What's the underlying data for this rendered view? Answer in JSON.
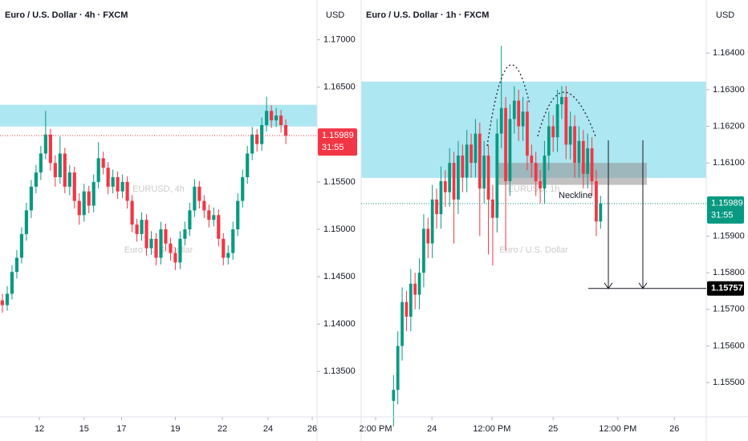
{
  "chart_data": [
    {
      "type": "candlestick",
      "title": "Euro / U.S. Dollar · 4h · FXCM",
      "currency": "USD",
      "watermark": "EURUSD, 4h",
      "watermark_subtitle": "Euro / U.S. Dollar",
      "up_color": "#089981",
      "down_color": "#f23645",
      "xlim": [
        0,
        66
      ],
      "xticks": [
        {
          "value": 8.2,
          "label": "12"
        },
        {
          "value": 17.5,
          "label": "15"
        },
        {
          "value": 25.3,
          "label": "17"
        },
        {
          "value": 36.5,
          "label": "19"
        },
        {
          "value": 46.3,
          "label": "22"
        },
        {
          "value": 55.8,
          "label": "24"
        },
        {
          "value": 65,
          "label": "26"
        }
      ],
      "ylim": [
        1.1302,
        1.1742
      ],
      "yticks": [
        {
          "value": 1.17,
          "label": "1.17000"
        },
        {
          "value": 1.165,
          "label": "1.16500"
        },
        {
          "value": 1.155,
          "label": "1.15500"
        },
        {
          "value": 1.15,
          "label": "1.15000"
        },
        {
          "value": 1.145,
          "label": "1.14500"
        },
        {
          "value": 1.14,
          "label": "1.14000"
        },
        {
          "value": 1.135,
          "label": "1.13500"
        }
      ],
      "last_price": 1.15989,
      "countdown": "31:55",
      "zones": [
        {
          "from": 1.16314,
          "to": 1.16085,
          "color": "#a9e6f0"
        }
      ],
      "candles": [
        [
          1.1425,
          1.1432,
          1.1412,
          1.142
        ],
        [
          1.142,
          1.144,
          1.1414,
          1.1432
        ],
        [
          1.1432,
          1.1462,
          1.1426,
          1.1455
        ],
        [
          1.1455,
          1.1478,
          1.1448,
          1.147
        ],
        [
          1.147,
          1.1502,
          1.1464,
          1.1495
        ],
        [
          1.1495,
          1.1528,
          1.1488,
          1.152
        ],
        [
          1.152,
          1.1552,
          1.1512,
          1.1545
        ],
        [
          1.1545,
          1.1568,
          1.1538,
          1.156
        ],
        [
          1.156,
          1.1588,
          1.1552,
          1.158
        ],
        [
          1.158,
          1.1625,
          1.1574,
          1.16
        ],
        [
          1.16,
          1.1606,
          1.1562,
          1.157
        ],
        [
          1.157,
          1.1578,
          1.1545,
          1.1555
        ],
        [
          1.1555,
          1.1598,
          1.1548,
          1.158
        ],
        [
          1.158,
          1.1586,
          1.1538,
          1.1545
        ],
        [
          1.1545,
          1.1568,
          1.1536,
          1.156
        ],
        [
          1.156,
          1.1566,
          1.1522,
          1.153
        ],
        [
          1.153,
          1.1538,
          1.1505,
          1.1515
        ],
        [
          1.1515,
          1.1548,
          1.1508,
          1.154
        ],
        [
          1.154,
          1.1546,
          1.1517,
          1.1525
        ],
        [
          1.1525,
          1.1558,
          1.1518,
          1.155
        ],
        [
          1.155,
          1.1592,
          1.1543,
          1.1575
        ],
        [
          1.1575,
          1.1582,
          1.1558,
          1.1565
        ],
        [
          1.1565,
          1.1571,
          1.1537,
          1.1545
        ],
        [
          1.1545,
          1.1563,
          1.1538,
          1.1555
        ],
        [
          1.1555,
          1.1561,
          1.1532,
          1.154
        ],
        [
          1.154,
          1.1558,
          1.1533,
          1.155
        ],
        [
          1.155,
          1.1556,
          1.1522,
          1.153
        ],
        [
          1.153,
          1.1536,
          1.1497,
          1.1505
        ],
        [
          1.1505,
          1.1511,
          1.1487,
          1.1495
        ],
        [
          1.1495,
          1.1518,
          1.1488,
          1.151
        ],
        [
          1.151,
          1.1516,
          1.1472,
          1.148
        ],
        [
          1.148,
          1.1498,
          1.1473,
          1.149
        ],
        [
          1.149,
          1.1496,
          1.1462,
          1.147
        ],
        [
          1.147,
          1.1508,
          1.1463,
          1.15
        ],
        [
          1.15,
          1.1506,
          1.1477,
          1.1485
        ],
        [
          1.1485,
          1.1491,
          1.1467,
          1.1475
        ],
        [
          1.1475,
          1.1481,
          1.1457,
          1.1465
        ],
        [
          1.1465,
          1.1498,
          1.1458,
          1.149
        ],
        [
          1.149,
          1.1508,
          1.1483,
          1.15
        ],
        [
          1.15,
          1.1528,
          1.1493,
          1.152
        ],
        [
          1.152,
          1.1553,
          1.1513,
          1.1545
        ],
        [
          1.1545,
          1.1551,
          1.1522,
          1.153
        ],
        [
          1.153,
          1.1536,
          1.1512,
          1.152
        ],
        [
          1.152,
          1.1526,
          1.1502,
          1.151
        ],
        [
          1.151,
          1.1523,
          1.1503,
          1.1515
        ],
        [
          1.1515,
          1.1521,
          1.1482,
          1.149
        ],
        [
          1.149,
          1.1496,
          1.1462,
          1.147
        ],
        [
          1.147,
          1.1483,
          1.1463,
          1.1475
        ],
        [
          1.1475,
          1.1508,
          1.1468,
          1.15
        ],
        [
          1.15,
          1.1538,
          1.1493,
          1.153
        ],
        [
          1.153,
          1.1563,
          1.1523,
          1.1555
        ],
        [
          1.1555,
          1.1588,
          1.1548,
          1.158
        ],
        [
          1.158,
          1.1608,
          1.1573,
          1.16
        ],
        [
          1.16,
          1.1606,
          1.1582,
          1.159
        ],
        [
          1.159,
          1.1618,
          1.1583,
          1.161
        ],
        [
          1.161,
          1.164,
          1.1603,
          1.1625
        ],
        [
          1.1625,
          1.1631,
          1.1607,
          1.1615
        ],
        [
          1.1615,
          1.1628,
          1.1608,
          1.162
        ],
        [
          1.162,
          1.1626,
          1.1602,
          1.161
        ],
        [
          1.161,
          1.1616,
          1.159,
          1.15989
        ]
      ]
    },
    {
      "type": "candlestick",
      "title": "Euro / U.S. Dollar · 1h · FXCM",
      "currency": "USD",
      "watermark": "EURUSD, 1h",
      "watermark_subtitle": "Euro / U.S. Dollar",
      "up_color": "#089981",
      "down_color": "#f23645",
      "xlim": [
        -7,
        73
      ],
      "xticks": [
        {
          "value": -3.65,
          "label": "2:00 PM"
        },
        {
          "value": 9.4,
          "label": "24"
        },
        {
          "value": 23.3,
          "label": "12:00 PM"
        },
        {
          "value": 37.5,
          "label": "25"
        },
        {
          "value": 52.5,
          "label": "12:00 PM"
        },
        {
          "value": 65.6,
          "label": "26"
        }
      ],
      "ylim": [
        1.15406,
        1.16545
      ],
      "yticks": [
        {
          "value": 1.164,
          "label": "1.16400"
        },
        {
          "value": 1.163,
          "label": "1.16300"
        },
        {
          "value": 1.162,
          "label": "1.16200"
        },
        {
          "value": 1.161,
          "label": "1.16100"
        },
        {
          "value": 1.159,
          "label": "1.15900"
        },
        {
          "value": 1.158,
          "label": "1.15800"
        },
        {
          "value": 1.157,
          "label": "1.15700"
        },
        {
          "value": 1.156,
          "label": "1.15600"
        },
        {
          "value": 1.155,
          "label": "1.15500"
        }
      ],
      "last_price": 1.15989,
      "countdown": "31:55",
      "zones": [
        {
          "from": 1.16322,
          "to": 1.16059,
          "color": "#a9e6f0"
        },
        {
          "from": 1.161,
          "to": 1.1604,
          "color": "#8f8f8f"
        }
      ],
      "annotation": "Neckline",
      "target": 1.15757,
      "candles": [
        [
          1.1545,
          1.1552,
          1.1538,
          1.1548
        ],
        [
          1.1548,
          1.1564,
          1.1544,
          1.156
        ],
        [
          1.156,
          1.1576,
          1.1556,
          1.1572
        ],
        [
          1.1572,
          1.1575,
          1.1564,
          1.1568
        ],
        [
          1.1568,
          1.1581,
          1.1564,
          1.1577
        ],
        [
          1.1577,
          1.158,
          1.157,
          1.1574
        ],
        [
          1.1574,
          1.1584,
          1.157,
          1.158
        ],
        [
          1.158,
          1.1596,
          1.1576,
          1.1592
        ],
        [
          1.1592,
          1.1595,
          1.1584,
          1.1588
        ],
        [
          1.1588,
          1.1604,
          1.1584,
          1.16
        ],
        [
          1.16,
          1.1603,
          1.1592,
          1.1596
        ],
        [
          1.1596,
          1.1609,
          1.1592,
          1.1605
        ],
        [
          1.1605,
          1.1608,
          1.1598,
          1.1602
        ],
        [
          1.1602,
          1.1614,
          1.1598,
          1.161
        ],
        [
          1.161,
          1.1613,
          1.1588,
          1.16
        ],
        [
          1.16,
          1.1616,
          1.1596,
          1.1612
        ],
        [
          1.1612,
          1.1615,
          1.1602,
          1.1606
        ],
        [
          1.1606,
          1.1619,
          1.1602,
          1.1615
        ],
        [
          1.1615,
          1.1618,
          1.1606,
          1.161
        ],
        [
          1.161,
          1.1622,
          1.1606,
          1.1618
        ],
        [
          1.1618,
          1.1621,
          1.159,
          1.1603
        ],
        [
          1.1603,
          1.1616,
          1.1599,
          1.1612
        ],
        [
          1.1612,
          1.1615,
          1.1585,
          1.16
        ],
        [
          1.16,
          1.1604,
          1.1582,
          1.1595
        ],
        [
          1.1595,
          1.1622,
          1.1591,
          1.1618
        ],
        [
          1.1618,
          1.1642,
          1.1614,
          1.1625
        ],
        [
          1.1625,
          1.1628,
          1.1586,
          1.1605
        ],
        [
          1.1605,
          1.1626,
          1.1601,
          1.1622
        ],
        [
          1.1622,
          1.1631,
          1.1618,
          1.1627
        ],
        [
          1.1627,
          1.163,
          1.1616,
          1.162
        ],
        [
          1.162,
          1.1628,
          1.1616,
          1.1624
        ],
        [
          1.1624,
          1.1627,
          1.1608,
          1.1612
        ],
        [
          1.1612,
          1.1615,
          1.1606,
          1.161
        ],
        [
          1.161,
          1.1613,
          1.1601,
          1.1605
        ],
        [
          1.1605,
          1.1608,
          1.1599,
          1.1603
        ],
        [
          1.1603,
          1.1616,
          1.1599,
          1.1612
        ],
        [
          1.1612,
          1.1624,
          1.1608,
          1.162
        ],
        [
          1.162,
          1.1623,
          1.1613,
          1.1617
        ],
        [
          1.1617,
          1.163,
          1.1613,
          1.1626
        ],
        [
          1.1626,
          1.1631,
          1.1622,
          1.1628
        ],
        [
          1.1628,
          1.1631,
          1.1611,
          1.1615
        ],
        [
          1.1615,
          1.1624,
          1.1611,
          1.162
        ],
        [
          1.162,
          1.1623,
          1.1606,
          1.161
        ],
        [
          1.161,
          1.162,
          1.1606,
          1.1616
        ],
        [
          1.1616,
          1.1619,
          1.1603,
          1.1607
        ],
        [
          1.1607,
          1.1618,
          1.1603,
          1.1614
        ],
        [
          1.1614,
          1.1617,
          1.1601,
          1.1605
        ],
        [
          1.1605,
          1.1608,
          1.159,
          1.1594
        ],
        [
          1.1594,
          1.1601,
          1.1592,
          1.15989
        ]
      ]
    }
  ]
}
